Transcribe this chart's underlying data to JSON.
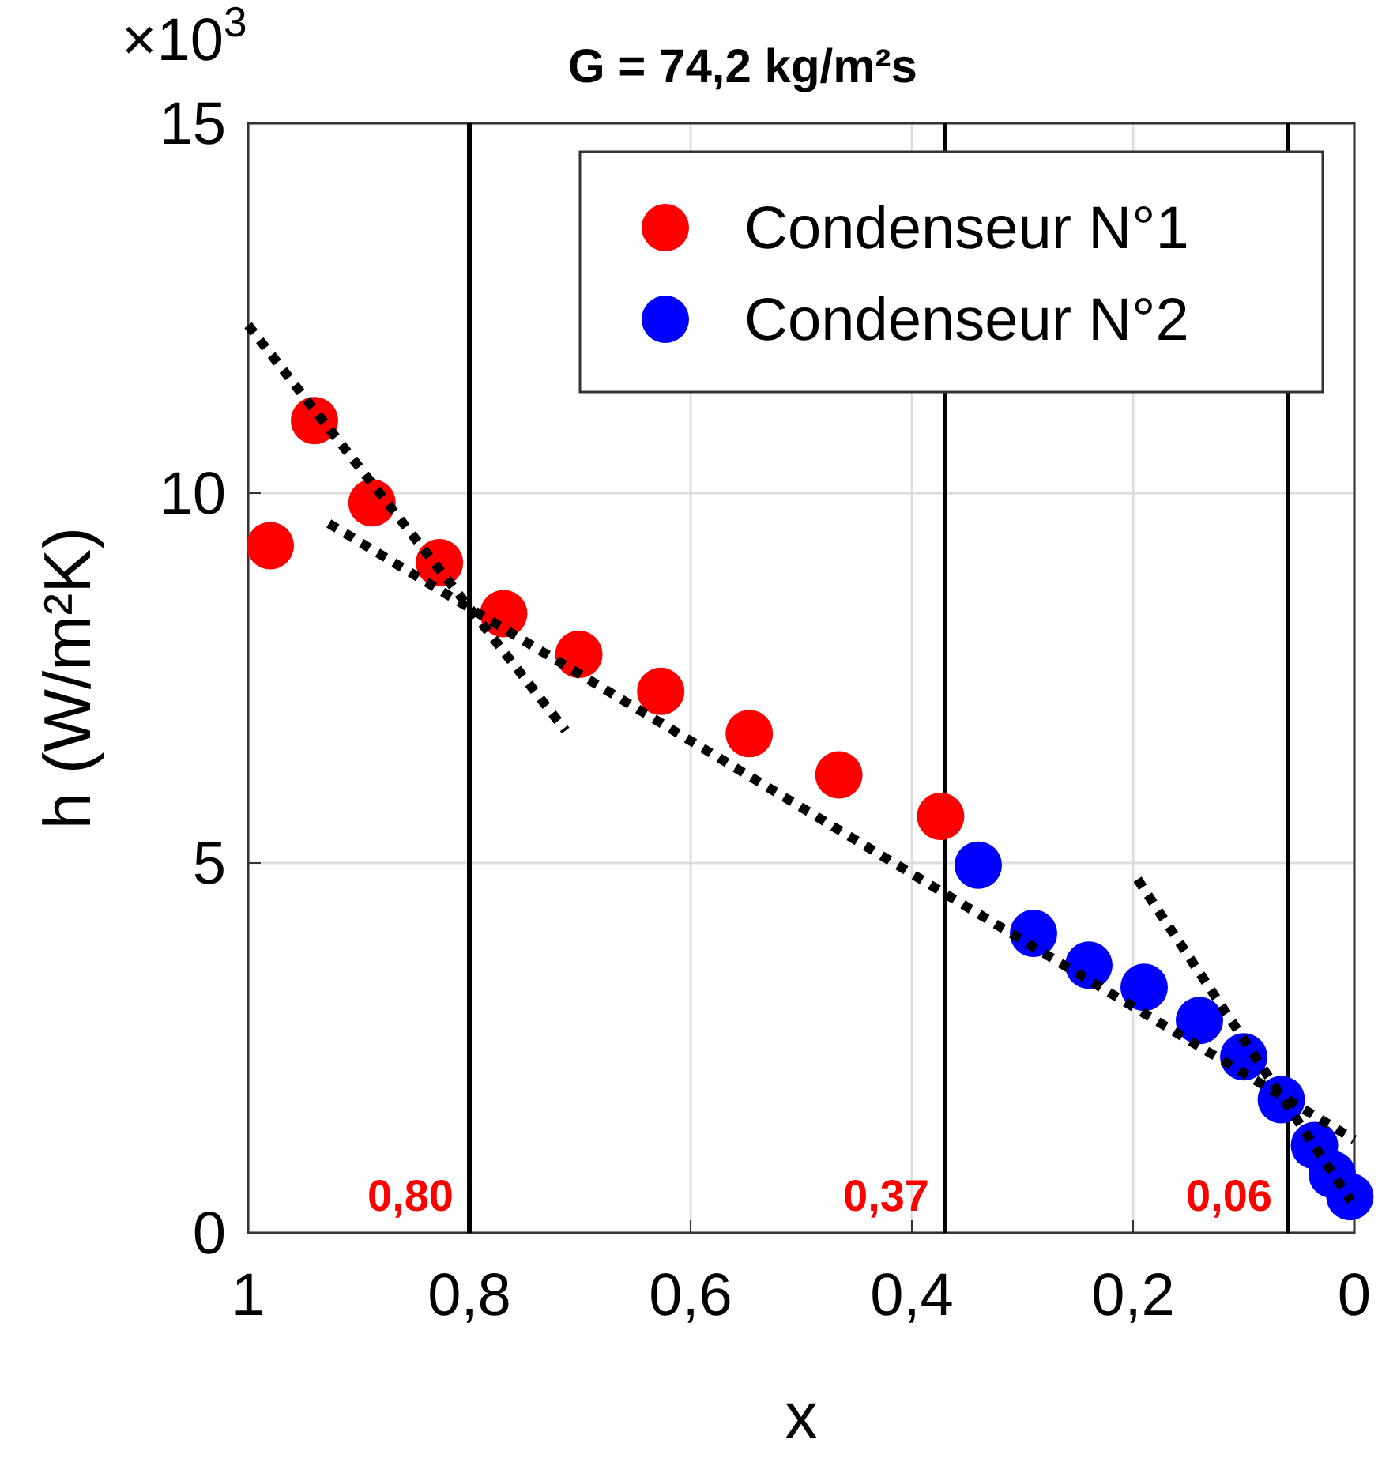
{
  "chart_data": {
    "type": "scatter",
    "title": "G = 74,2 kg/m²s",
    "xlabel": "x",
    "ylabel": "h (W/m²K)",
    "annotations": [
      "×10$^{3}$"
    ],
    "xlim": [
      1,
      0
    ],
    "xticks": [
      {
        "value": 1,
        "label": "1"
      },
      {
        "value": 0.8,
        "label": "0,8"
      },
      {
        "value": 0.6,
        "label": "0,6"
      },
      {
        "value": 0.4,
        "label": "0,4"
      },
      {
        "value": 0.2,
        "label": "0,2"
      },
      {
        "value": 0,
        "label": "0"
      }
    ],
    "ylim": [
      0,
      15
    ],
    "yticks": [
      0,
      5,
      10,
      15
    ],
    "grid": true,
    "legend": "top right",
    "marker": "circle",
    "series": [
      {
        "name": "Condenseur N°1",
        "color": "#ff0000",
        "x": [
          0.98,
          0.94,
          0.888,
          0.827,
          0.769,
          0.701,
          0.627,
          0.547,
          0.466,
          0.374
        ],
        "values": [
          9.29,
          10.98,
          9.87,
          9.06,
          8.37,
          7.82,
          7.32,
          6.75,
          6.19,
          5.63
        ]
      },
      {
        "name": "Condenseur N°2",
        "color": "#0000ff",
        "x": [
          0.34,
          0.29,
          0.24,
          0.19,
          0.14,
          0.1,
          0.066,
          0.036,
          0.02,
          0.004
        ],
        "values": [
          4.97,
          4.05,
          3.62,
          3.32,
          2.87,
          2.38,
          1.8,
          1.18,
          0.79,
          0.49
        ]
      },
      {
        "type": "line",
        "color": "#000000",
        "line_style": "dotted",
        "marker": "none",
        "x": [
          1,
          0.713
        ],
        "values": [
          12.27,
          6.79
        ]
      },
      {
        "type": "line",
        "color": "#000000",
        "line_style": "dotted",
        "marker": "none",
        "x": [
          0.927,
          0
        ],
        "values": [
          9.59,
          1.26
        ]
      },
      {
        "type": "line",
        "color": "#000000",
        "line_style": "dotted",
        "marker": "none",
        "x": [
          0.196,
          0.003
        ],
        "values": [
          4.78,
          0.43
        ]
      }
    ],
    "ref_lines": [
      {
        "axis": "x",
        "value": 0.8,
        "label": "0,80",
        "color": "#000000"
      },
      {
        "axis": "x",
        "value": 0.37,
        "label": "0,37",
        "color": "#000000"
      },
      {
        "axis": "x",
        "value": 0.06,
        "label": "0,06",
        "color": "#000000"
      }
    ]
  }
}
